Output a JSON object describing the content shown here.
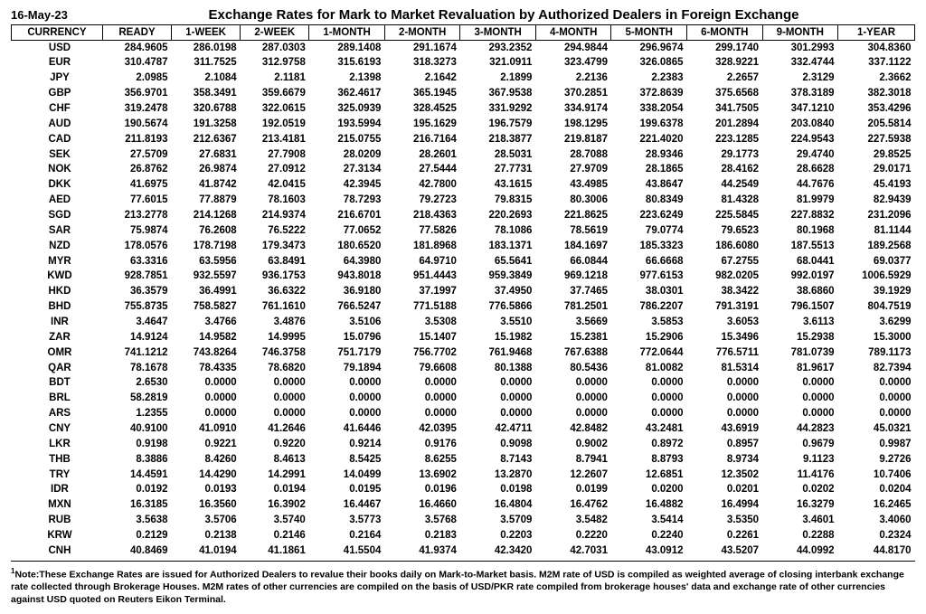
{
  "date": "16-May-23",
  "title": "Exchange Rates for Mark to Market Revaluation by Authorized Dealers in Foreign Exchange",
  "columns": [
    "CURRENCY",
    "READY",
    "1-WEEK",
    "2-WEEK",
    "1-MONTH",
    "2-MONTH",
    "3-MONTH",
    "4-MONTH",
    "5-MONTH",
    "6-MONTH",
    "9-MONTH",
    "1-YEAR"
  ],
  "rows": [
    [
      "USD",
      "284.9605",
      "286.0198",
      "287.0303",
      "289.1408",
      "291.1674",
      "293.2352",
      "294.9844",
      "296.9674",
      "299.1740",
      "301.2993",
      "304.8360"
    ],
    [
      "EUR",
      "310.4787",
      "311.7525",
      "312.9758",
      "315.6193",
      "318.3273",
      "321.0911",
      "323.4799",
      "326.0865",
      "328.9221",
      "332.4744",
      "337.1122"
    ],
    [
      "JPY",
      "2.0985",
      "2.1084",
      "2.1181",
      "2.1398",
      "2.1642",
      "2.1899",
      "2.2136",
      "2.2383",
      "2.2657",
      "2.3129",
      "2.3662"
    ],
    [
      "GBP",
      "356.9701",
      "358.3491",
      "359.6679",
      "362.4617",
      "365.1945",
      "367.9538",
      "370.2851",
      "372.8639",
      "375.6568",
      "378.3189",
      "382.3018"
    ],
    [
      "CHF",
      "319.2478",
      "320.6788",
      "322.0615",
      "325.0939",
      "328.4525",
      "331.9292",
      "334.9174",
      "338.2054",
      "341.7505",
      "347.1210",
      "353.4296"
    ],
    [
      "AUD",
      "190.5674",
      "191.3258",
      "192.0519",
      "193.5994",
      "195.1629",
      "196.7579",
      "198.1295",
      "199.6378",
      "201.2894",
      "203.0840",
      "205.5814"
    ],
    [
      "CAD",
      "211.8193",
      "212.6367",
      "213.4181",
      "215.0755",
      "216.7164",
      "218.3877",
      "219.8187",
      "221.4020",
      "223.1285",
      "224.9543",
      "227.5938"
    ],
    [
      "SEK",
      "27.5709",
      "27.6831",
      "27.7908",
      "28.0209",
      "28.2601",
      "28.5031",
      "28.7088",
      "28.9346",
      "29.1773",
      "29.4740",
      "29.8525"
    ],
    [
      "NOK",
      "26.8762",
      "26.9874",
      "27.0912",
      "27.3134",
      "27.5444",
      "27.7731",
      "27.9709",
      "28.1865",
      "28.4162",
      "28.6628",
      "29.0171"
    ],
    [
      "DKK",
      "41.6975",
      "41.8742",
      "42.0415",
      "42.3945",
      "42.7800",
      "43.1615",
      "43.4985",
      "43.8647",
      "44.2549",
      "44.7676",
      "45.4193"
    ],
    [
      "AED",
      "77.6015",
      "77.8879",
      "78.1603",
      "78.7293",
      "79.2723",
      "79.8315",
      "80.3006",
      "80.8349",
      "81.4328",
      "81.9979",
      "82.9439"
    ],
    [
      "SGD",
      "213.2778",
      "214.1268",
      "214.9374",
      "216.6701",
      "218.4363",
      "220.2693",
      "221.8625",
      "223.6249",
      "225.5845",
      "227.8832",
      "231.2096"
    ],
    [
      "SAR",
      "75.9874",
      "76.2608",
      "76.5222",
      "77.0652",
      "77.5826",
      "78.1086",
      "78.5619",
      "79.0774",
      "79.6523",
      "80.1968",
      "81.1144"
    ],
    [
      "NZD",
      "178.0576",
      "178.7198",
      "179.3473",
      "180.6520",
      "181.8968",
      "183.1371",
      "184.1697",
      "185.3323",
      "186.6080",
      "187.5513",
      "189.2568"
    ],
    [
      "MYR",
      "63.3316",
      "63.5956",
      "63.8491",
      "64.3980",
      "64.9710",
      "65.5641",
      "66.0844",
      "66.6668",
      "67.2755",
      "68.0441",
      "69.0377"
    ],
    [
      "KWD",
      "928.7851",
      "932.5597",
      "936.1753",
      "943.8018",
      "951.4443",
      "959.3849",
      "969.1218",
      "977.6153",
      "982.0205",
      "992.0197",
      "1006.5929"
    ],
    [
      "HKD",
      "36.3579",
      "36.4991",
      "36.6322",
      "36.9180",
      "37.1997",
      "37.4950",
      "37.7465",
      "38.0301",
      "38.3422",
      "38.6860",
      "39.1929"
    ],
    [
      "BHD",
      "755.8735",
      "758.5827",
      "761.1610",
      "766.5247",
      "771.5188",
      "776.5866",
      "781.2501",
      "786.2207",
      "791.3191",
      "796.1507",
      "804.7519"
    ],
    [
      "INR",
      "3.4647",
      "3.4766",
      "3.4876",
      "3.5106",
      "3.5308",
      "3.5510",
      "3.5669",
      "3.5853",
      "3.6053",
      "3.6113",
      "3.6299"
    ],
    [
      "ZAR",
      "14.9124",
      "14.9582",
      "14.9995",
      "15.0796",
      "15.1407",
      "15.1982",
      "15.2381",
      "15.2906",
      "15.3496",
      "15.2938",
      "15.3000"
    ],
    [
      "OMR",
      "741.1212",
      "743.8264",
      "746.3758",
      "751.7179",
      "756.7702",
      "761.9468",
      "767.6388",
      "772.0644",
      "776.5711",
      "781.0739",
      "789.1173"
    ],
    [
      "QAR",
      "78.1678",
      "78.4335",
      "78.6820",
      "79.1894",
      "79.6608",
      "80.1388",
      "80.5436",
      "81.0082",
      "81.5314",
      "81.9617",
      "82.7394"
    ],
    [
      "BDT",
      "2.6530",
      "0.0000",
      "0.0000",
      "0.0000",
      "0.0000",
      "0.0000",
      "0.0000",
      "0.0000",
      "0.0000",
      "0.0000",
      "0.0000"
    ],
    [
      "BRL",
      "58.2819",
      "0.0000",
      "0.0000",
      "0.0000",
      "0.0000",
      "0.0000",
      "0.0000",
      "0.0000",
      "0.0000",
      "0.0000",
      "0.0000"
    ],
    [
      "ARS",
      "1.2355",
      "0.0000",
      "0.0000",
      "0.0000",
      "0.0000",
      "0.0000",
      "0.0000",
      "0.0000",
      "0.0000",
      "0.0000",
      "0.0000"
    ],
    [
      "CNY",
      "40.9100",
      "41.0910",
      "41.2646",
      "41.6446",
      "42.0395",
      "42.4711",
      "42.8482",
      "43.2481",
      "43.6919",
      "44.2823",
      "45.0321"
    ],
    [
      "LKR",
      "0.9198",
      "0.9221",
      "0.9220",
      "0.9214",
      "0.9176",
      "0.9098",
      "0.9002",
      "0.8972",
      "0.8957",
      "0.9679",
      "0.9987"
    ],
    [
      "THB",
      "8.3886",
      "8.4260",
      "8.4613",
      "8.5425",
      "8.6255",
      "8.7143",
      "8.7941",
      "8.8793",
      "8.9734",
      "9.1123",
      "9.2726"
    ],
    [
      "TRY",
      "14.4591",
      "14.4290",
      "14.2991",
      "14.0499",
      "13.6902",
      "13.2870",
      "12.2607",
      "12.6851",
      "12.3502",
      "11.4176",
      "10.7406"
    ],
    [
      "IDR",
      "0.0192",
      "0.0193",
      "0.0194",
      "0.0195",
      "0.0196",
      "0.0198",
      "0.0199",
      "0.0200",
      "0.0201",
      "0.0202",
      "0.0204"
    ],
    [
      "MXN",
      "16.3185",
      "16.3560",
      "16.3902",
      "16.4467",
      "16.4660",
      "16.4804",
      "16.4762",
      "16.4882",
      "16.4994",
      "16.3279",
      "16.2465"
    ],
    [
      "RUB",
      "3.5638",
      "3.5706",
      "3.5740",
      "3.5773",
      "3.5768",
      "3.5709",
      "3.5482",
      "3.5414",
      "3.5350",
      "3.4601",
      "3.4060"
    ],
    [
      "KRW",
      "0.2129",
      "0.2138",
      "0.2146",
      "0.2164",
      "0.2183",
      "0.2203",
      "0.2220",
      "0.2240",
      "0.2261",
      "0.2288",
      "0.2324"
    ],
    [
      "CNH",
      "40.8469",
      "41.0194",
      "41.1861",
      "41.5504",
      "41.9374",
      "42.3420",
      "42.7031",
      "43.0912",
      "43.5207",
      "44.0992",
      "44.8170"
    ]
  ],
  "footnote": "Note:These Exchange Rates are issued for Authorized Dealers to revalue their books daily on Mark-to-Market basis. M2M rate of USD is compiled as weighted average of closing interbank exchange rate collected through Brokerage Houses. M2M rates of other currencies are compiled on the basis of USD/PKR rate compiled from brokerage houses' data and exchange rate of other currencies against USD quoted on Reuters Eikon Terminal."
}
